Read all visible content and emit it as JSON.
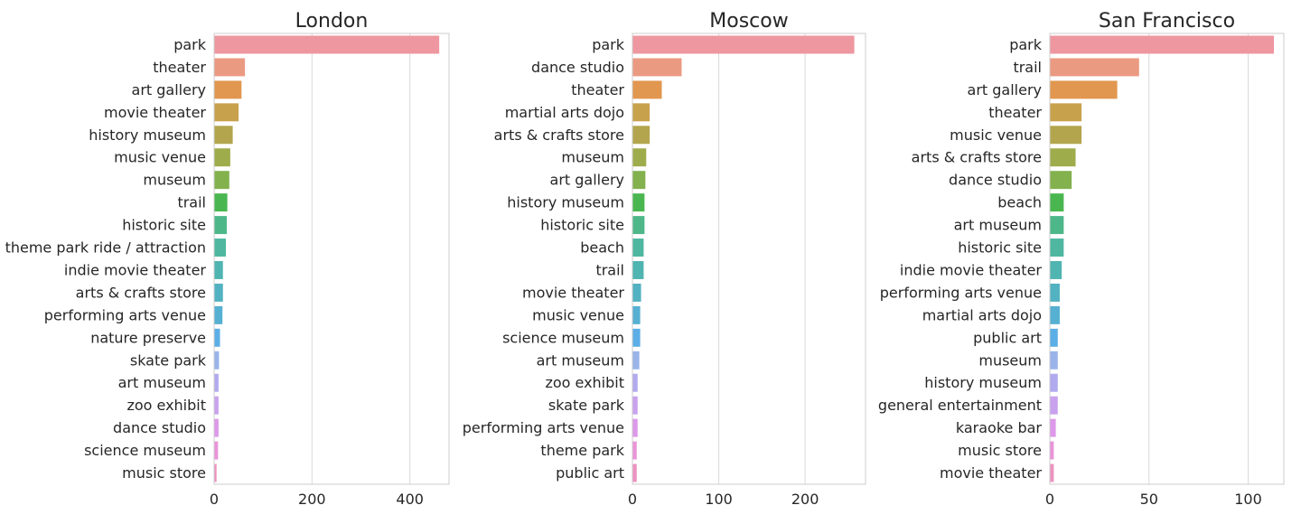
{
  "chart_data": [
    {
      "type": "bar",
      "orientation": "horizontal",
      "title": "London",
      "xlabel": "",
      "ylabel": "",
      "xlim": [
        0,
        480
      ],
      "xticks": [
        0,
        200,
        400
      ],
      "grid": true,
      "categories": [
        "park",
        "theater",
        "art gallery",
        "movie theater",
        "history museum",
        "music venue",
        "museum",
        "trail",
        "historic site",
        "theme park ride / attraction",
        "indie movie theater",
        "arts & crafts store",
        "performing arts venue",
        "nature preserve",
        "skate park",
        "art museum",
        "zoo exhibit",
        "dance studio",
        "science museum",
        "music store"
      ],
      "values": [
        460,
        63,
        56,
        50,
        38,
        33,
        31,
        27,
        26,
        24,
        18,
        18,
        17,
        12,
        10,
        9,
        9,
        9,
        8,
        5
      ]
    },
    {
      "type": "bar",
      "orientation": "horizontal",
      "title": "Moscow",
      "xlabel": "",
      "ylabel": "",
      "xlim": [
        0,
        270
      ],
      "xticks": [
        0,
        100,
        200
      ],
      "grid": true,
      "categories": [
        "park",
        "dance studio",
        "theater",
        "martial arts dojo",
        "arts & crafts store",
        "museum",
        "art gallery",
        "history museum",
        "historic site",
        "beach",
        "trail",
        "movie theater",
        "music venue",
        "science museum",
        "art museum",
        "zoo exhibit",
        "skate park",
        "performing arts venue",
        "theme park",
        "public art"
      ],
      "values": [
        257,
        57,
        34,
        20,
        20,
        16,
        15,
        14,
        14,
        13,
        13,
        10,
        9,
        9,
        8,
        6,
        6,
        6,
        5,
        5
      ]
    },
    {
      "type": "bar",
      "orientation": "horizontal",
      "title": "San Francisco",
      "xlabel": "",
      "ylabel": "",
      "xlim": [
        0,
        118
      ],
      "xticks": [
        0,
        50,
        100
      ],
      "grid": true,
      "categories": [
        "park",
        "trail",
        "art gallery",
        "theater",
        "music venue",
        "arts & crafts store",
        "dance studio",
        "beach",
        "art museum",
        "historic site",
        "indie movie theater",
        "performing arts venue",
        "martial arts dojo",
        "public art",
        "museum",
        "history museum",
        "general entertainment",
        "karaoke bar",
        "music store",
        "movie theater"
      ],
      "values": [
        113,
        45,
        34,
        16,
        16,
        13,
        11,
        7,
        7,
        7,
        6,
        5,
        5,
        4,
        4,
        4,
        4,
        3,
        2,
        2
      ]
    }
  ],
  "palette": [
    "#ee97a0",
    "#eb9a82",
    "#e1974f",
    "#c8a14d",
    "#b2a54d",
    "#9fac4c",
    "#82b14d",
    "#4ab650",
    "#4eb789",
    "#4fb7a0",
    "#50b4b1",
    "#52b2c1",
    "#56b0d2",
    "#5caee6",
    "#9ab4ea",
    "#b2aaee",
    "#c9a2ee",
    "#dd98e9",
    "#ea94d8",
    "#ec93bf"
  ]
}
